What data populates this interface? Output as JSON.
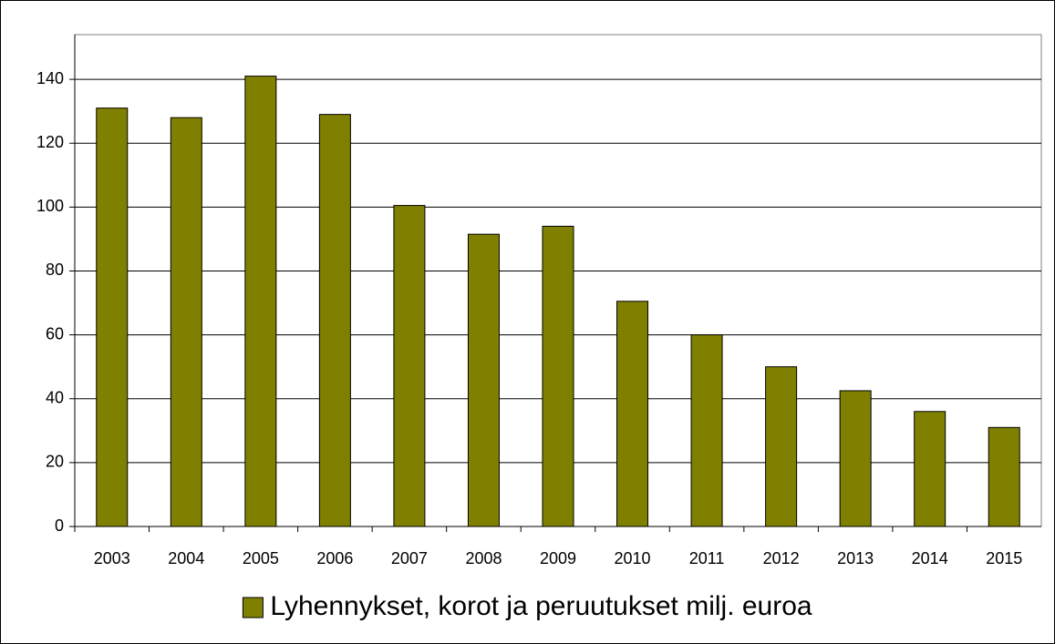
{
  "chart_data": {
    "type": "bar",
    "categories": [
      "2003",
      "2004",
      "2005",
      "2006",
      "2007",
      "2008",
      "2009",
      "2010",
      "2011",
      "2012",
      "2013",
      "2014",
      "2015"
    ],
    "series": [
      {
        "name": "Lyhennykset, korot ja peruutukset milj. euroa",
        "color": "#808000",
        "values": [
          131,
          128,
          141,
          129,
          100.5,
          91.5,
          94,
          70.5,
          60,
          50,
          42.5,
          36,
          31
        ]
      }
    ],
    "ylim": [
      0,
      154
    ],
    "yticks": [
      0,
      20,
      40,
      60,
      80,
      100,
      120,
      140
    ],
    "grid": true,
    "legend": "bottom"
  }
}
